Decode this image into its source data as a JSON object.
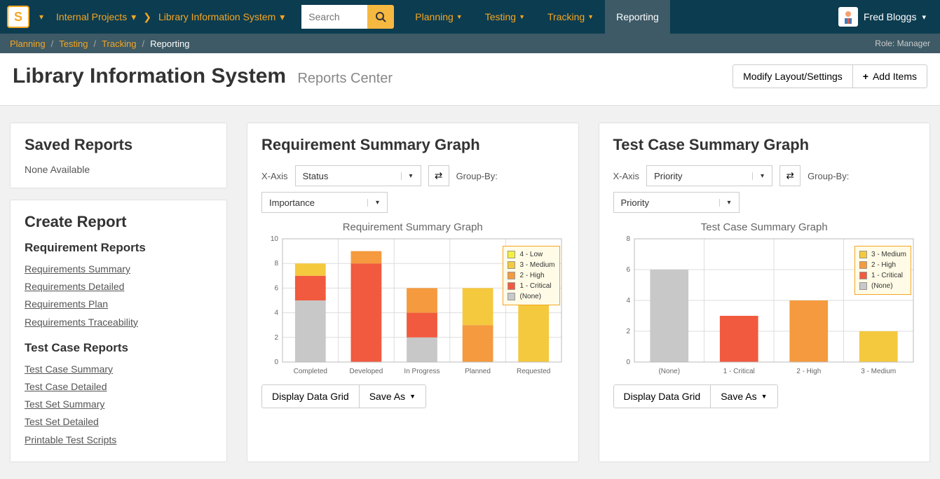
{
  "topnav": {
    "workspace": "Internal Projects",
    "project": "Library Information System",
    "search_placeholder": "Search",
    "menu": [
      "Planning",
      "Testing",
      "Tracking",
      "Reporting"
    ],
    "active_index": 3,
    "user": "Fred Bloggs"
  },
  "breadcrumb": {
    "items": [
      "Planning",
      "Testing",
      "Tracking"
    ],
    "current": "Reporting",
    "role": "Role: Manager"
  },
  "header": {
    "title": "Library Information System",
    "subtitle": "Reports Center",
    "btn_modify": "Modify Layout/Settings",
    "btn_add": "Add Items"
  },
  "sidebar": {
    "saved_title": "Saved Reports",
    "saved_none": "None Available",
    "create_title": "Create Report",
    "sections": [
      {
        "title": "Requirement Reports",
        "links": [
          "Requirements Summary",
          "Requirements Detailed",
          "Requirements Plan",
          "Requirements Traceability"
        ]
      },
      {
        "title": "Test Case Reports",
        "links": [
          "Test Case Summary",
          "Test Case Detailed",
          "Test Set Summary",
          "Test Set Detailed",
          "Printable Test Scripts"
        ]
      }
    ]
  },
  "chart1": {
    "panel_title": "Requirement Summary Graph",
    "xaxis_label": "X-Axis",
    "xaxis_value": "Status",
    "groupby_label": "Group-By:",
    "groupby_value": "Importance",
    "chart_title": "Requirement Summary Graph",
    "ymax": 10,
    "ytick": 2,
    "categories": [
      "Completed",
      "Developed",
      "In Progress",
      "Planned",
      "Requested"
    ],
    "series": [
      {
        "name": "(None)",
        "color": "#c8c8c8",
        "values": [
          5,
          0,
          2,
          0,
          0
        ]
      },
      {
        "name": "1 - Critical",
        "color": "#f15a3e",
        "values": [
          2,
          8,
          2,
          0,
          0
        ]
      },
      {
        "name": "2 - High",
        "color": "#f59a3e",
        "values": [
          0,
          1,
          2,
          3,
          0
        ]
      },
      {
        "name": "3 - Medium",
        "color": "#f5c93e",
        "values": [
          1,
          0,
          0,
          3,
          6
        ]
      },
      {
        "name": "4 - Low",
        "color": "#f5f03e",
        "values": [
          0,
          0,
          0,
          0,
          0
        ]
      }
    ],
    "legend_order": [
      "4 - Low",
      "3 - Medium",
      "2 - High",
      "1 - Critical",
      "(None)"
    ],
    "btn_grid": "Display Data Grid",
    "btn_save": "Save As"
  },
  "chart2": {
    "panel_title": "Test Case Summary Graph",
    "xaxis_label": "X-Axis",
    "xaxis_value": "Priority",
    "groupby_label": "Group-By:",
    "groupby_value": "Priority",
    "chart_title": "Test Case Summary Graph",
    "ymax": 8,
    "ytick": 2,
    "categories": [
      "(None)",
      "1 - Critical",
      "2 - High",
      "3 - Medium"
    ],
    "series": [
      {
        "name": "(None)",
        "color": "#c8c8c8",
        "values": [
          6,
          0,
          0,
          0
        ]
      },
      {
        "name": "1 - Critical",
        "color": "#f15a3e",
        "values": [
          0,
          3,
          0,
          0
        ]
      },
      {
        "name": "2 - High",
        "color": "#f59a3e",
        "values": [
          0,
          0,
          4,
          0
        ]
      },
      {
        "name": "3 - Medium",
        "color": "#f5c93e",
        "values": [
          0,
          0,
          0,
          2
        ]
      }
    ],
    "legend_order": [
      "3 - Medium",
      "2 - High",
      "1 - Critical",
      "(None)"
    ],
    "btn_grid": "Display Data Grid",
    "btn_save": "Save As"
  },
  "colors": {
    "nav_bg": "#0c3c50",
    "accent": "#f5a623",
    "subnav_bg": "#3d5a66"
  }
}
